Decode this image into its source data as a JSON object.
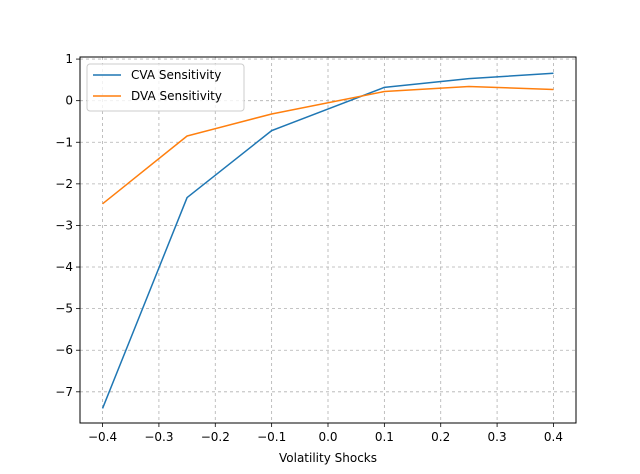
{
  "chart_data": {
    "type": "line",
    "title": "",
    "xlabel": "Volatility Shocks",
    "ylabel": "",
    "xlim": [
      -0.44,
      0.44
    ],
    "ylim": [
      -7.75,
      1.05
    ],
    "grid": true,
    "legend_position": "top-left",
    "x": [
      -0.4,
      -0.25,
      -0.1,
      0.1,
      0.25,
      0.4
    ],
    "xticks": [
      -0.4,
      -0.3,
      -0.2,
      -0.1,
      0.0,
      0.1,
      0.2,
      0.3,
      0.4
    ],
    "xtick_labels": [
      "−0.4",
      "−0.3",
      "−0.2",
      "−0.1",
      "0.0",
      "0.1",
      "0.2",
      "0.3",
      "0.4"
    ],
    "yticks": [
      1,
      0,
      -1,
      -2,
      -3,
      -4,
      -5,
      -6,
      -7
    ],
    "ytick_labels": [
      "1",
      "0",
      "−1",
      "−2",
      "−3",
      "−4",
      "−5",
      "−6",
      "−7"
    ],
    "series": [
      {
        "name": "CVA Sensitivity",
        "color": "#1f77b4",
        "values": [
          -7.4,
          -2.33,
          -0.72,
          0.32,
          0.53,
          0.66
        ]
      },
      {
        "name": "DVA Sensitivity",
        "color": "#ff7f0e",
        "values": [
          -2.48,
          -0.85,
          -0.32,
          0.22,
          0.34,
          0.27
        ]
      }
    ]
  }
}
